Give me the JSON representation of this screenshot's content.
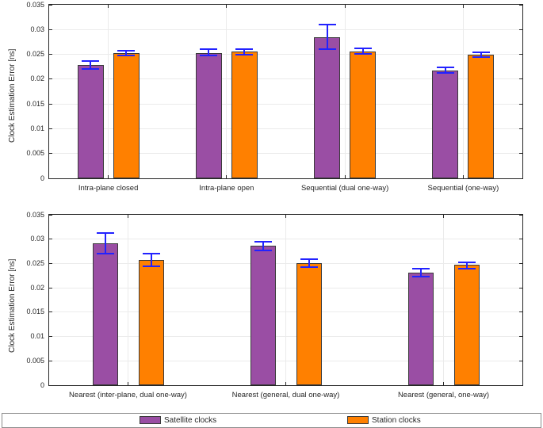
{
  "chart_data": [
    {
      "type": "bar",
      "title": "",
      "xlabel": "",
      "ylabel": "Clock Estimation Error [ns]",
      "ylim": [
        0,
        0.035
      ],
      "yticks": [
        "0",
        "0.005",
        "0.01",
        "0.015",
        "0.02",
        "0.025",
        "0.03",
        "0.035"
      ],
      "grid": true,
      "legend_position": "bottom",
      "error_bar_color": "#2222ff",
      "categories": [
        "Intra-plane closed",
        "Intra-plane open",
        "Sequential (dual one-way)",
        "Sequential (one-way)"
      ],
      "series": [
        {
          "name": "Satellite clocks",
          "color": "#9a4ea4",
          "values": [
            0.0229,
            0.0253,
            0.0285,
            0.0218
          ],
          "err_low": [
            0.0221,
            0.0247,
            0.026,
            0.0212
          ],
          "err_high": [
            0.0237,
            0.026,
            0.031,
            0.0224
          ]
        },
        {
          "name": "Station clocks",
          "color": "#ff8000",
          "values": [
            0.0252,
            0.0255,
            0.0256,
            0.0249
          ],
          "err_low": [
            0.0247,
            0.025,
            0.0251,
            0.0244
          ],
          "err_high": [
            0.0258,
            0.0261,
            0.0262,
            0.0254
          ]
        }
      ]
    },
    {
      "type": "bar",
      "title": "",
      "xlabel": "",
      "ylabel": "Clock Estimation Error [ns]",
      "ylim": [
        0,
        0.035
      ],
      "yticks": [
        "0",
        "0.005",
        "0.01",
        "0.015",
        "0.02",
        "0.025",
        "0.03",
        "0.035"
      ],
      "grid": true,
      "legend_position": "bottom",
      "error_bar_color": "#2222ff",
      "categories": [
        "Nearest (inter-plane, dual one-way)",
        "Nearest (general, dual one-way)",
        "Nearest (general, one-way)"
      ],
      "series": [
        {
          "name": "Satellite clocks",
          "color": "#9a4ea4",
          "values": [
            0.0291,
            0.0286,
            0.0231
          ],
          "err_low": [
            0.027,
            0.0277,
            0.0223
          ],
          "err_high": [
            0.0312,
            0.0295,
            0.0239
          ]
        },
        {
          "name": "Station clocks",
          "color": "#ff8000",
          "values": [
            0.0257,
            0.0251,
            0.0247
          ],
          "err_low": [
            0.0245,
            0.0243,
            0.024
          ],
          "err_high": [
            0.027,
            0.0259,
            0.0253
          ]
        }
      ]
    }
  ],
  "legend": {
    "items": [
      {
        "label": "Satellite clocks",
        "color": "#9a4ea4"
      },
      {
        "label": "Station clocks",
        "color": "#ff8000"
      }
    ]
  },
  "colors": {
    "background": "#ffffff",
    "axis": "#262626",
    "grid": "#ebebeb",
    "bar_edge": "#3a3a3a",
    "error_bar": "#2222ff",
    "legend_border": "#8c8c8c",
    "satellite_clocks": "#9a4ea4",
    "station_clocks": "#ff8000"
  }
}
